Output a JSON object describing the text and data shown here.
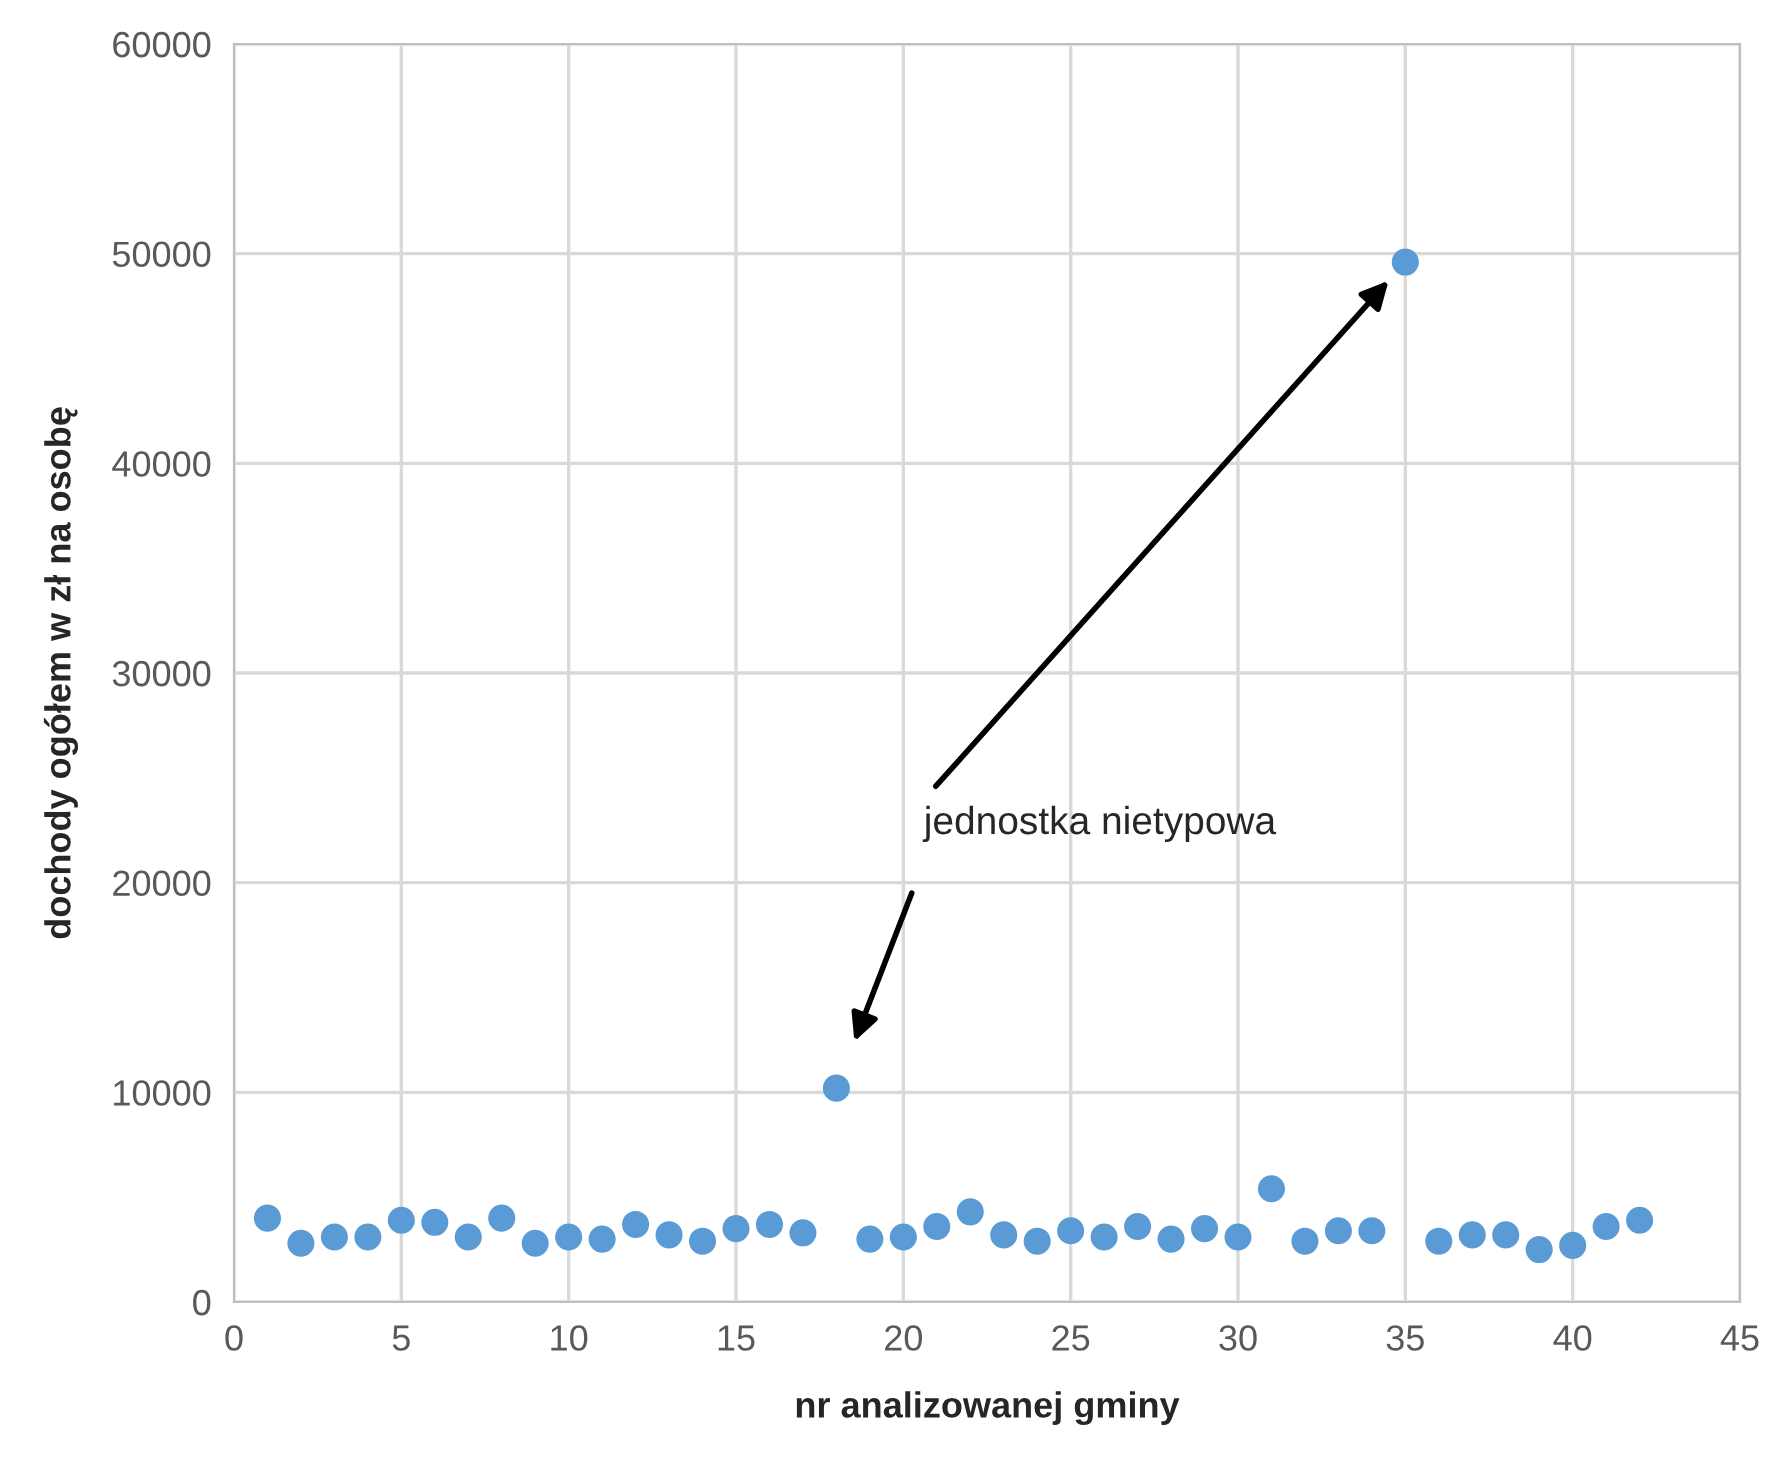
{
  "chart_data": {
    "type": "scatter",
    "xlabel": "nr analizowanej gminy",
    "ylabel": "dochody ogółem w zł na osobę",
    "x": [
      1,
      2,
      3,
      4,
      5,
      6,
      7,
      8,
      9,
      10,
      11,
      12,
      13,
      14,
      15,
      16,
      17,
      18,
      19,
      20,
      21,
      22,
      23,
      24,
      25,
      26,
      27,
      28,
      29,
      30,
      31,
      32,
      33,
      34,
      35,
      36,
      37,
      38,
      39,
      40,
      41,
      42
    ],
    "series": [
      {
        "color": "#5b9bd5",
        "values": [
          4000,
          2800,
          3100,
          3100,
          3900,
          3800,
          3100,
          4000,
          2800,
          3100,
          3000,
          3700,
          3200,
          2900,
          3500,
          3700,
          3300,
          10200,
          3000,
          3100,
          3600,
          4300,
          3200,
          2900,
          3400,
          3100,
          3600,
          3000,
          3500,
          3100,
          5400,
          2900,
          3400,
          3400,
          49600,
          2900,
          3200,
          3200,
          2500,
          2700,
          3600,
          3900
        ]
      }
    ],
    "xlim": [
      0,
      45
    ],
    "xticks": [
      0,
      5,
      10,
      15,
      20,
      25,
      30,
      35,
      40,
      45
    ],
    "ylim": [
      0,
      60000
    ],
    "yticks": [
      0,
      10000,
      20000,
      30000,
      40000,
      50000,
      60000
    ],
    "grid": true,
    "marker": "circle",
    "annotations": [
      "jednostka nietypowa"
    ]
  }
}
